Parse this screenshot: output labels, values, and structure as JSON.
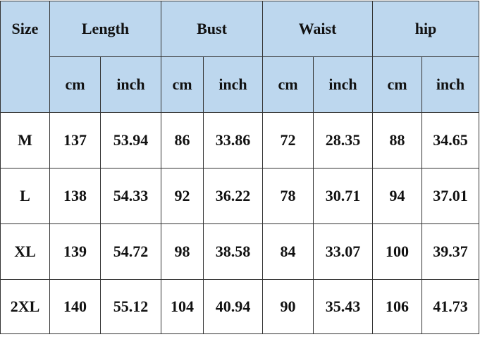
{
  "header": {
    "size": "Size",
    "groups": [
      "Length",
      "Bust",
      "Waist",
      "hip"
    ],
    "units": [
      "cm",
      "inch",
      "cm",
      "inch",
      "cm",
      "inch",
      "cm",
      "inch"
    ]
  },
  "rows": [
    {
      "size": "M",
      "values": [
        "137",
        "53.94",
        "86",
        "33.86",
        "72",
        "28.35",
        "88",
        "34.65"
      ]
    },
    {
      "size": "L",
      "values": [
        "138",
        "54.33",
        "92",
        "36.22",
        "78",
        "30.71",
        "94",
        "37.01"
      ]
    },
    {
      "size": "XL",
      "values": [
        "139",
        "54.72",
        "98",
        "38.58",
        "84",
        "33.07",
        "100",
        "39.37"
      ]
    },
    {
      "size": "2XL",
      "values": [
        "140",
        "55.12",
        "104",
        "40.94",
        "90",
        "35.43",
        "106",
        "41.73"
      ]
    }
  ],
  "colors": {
    "header_bg": "#bdd7ee",
    "border": "#333333"
  }
}
